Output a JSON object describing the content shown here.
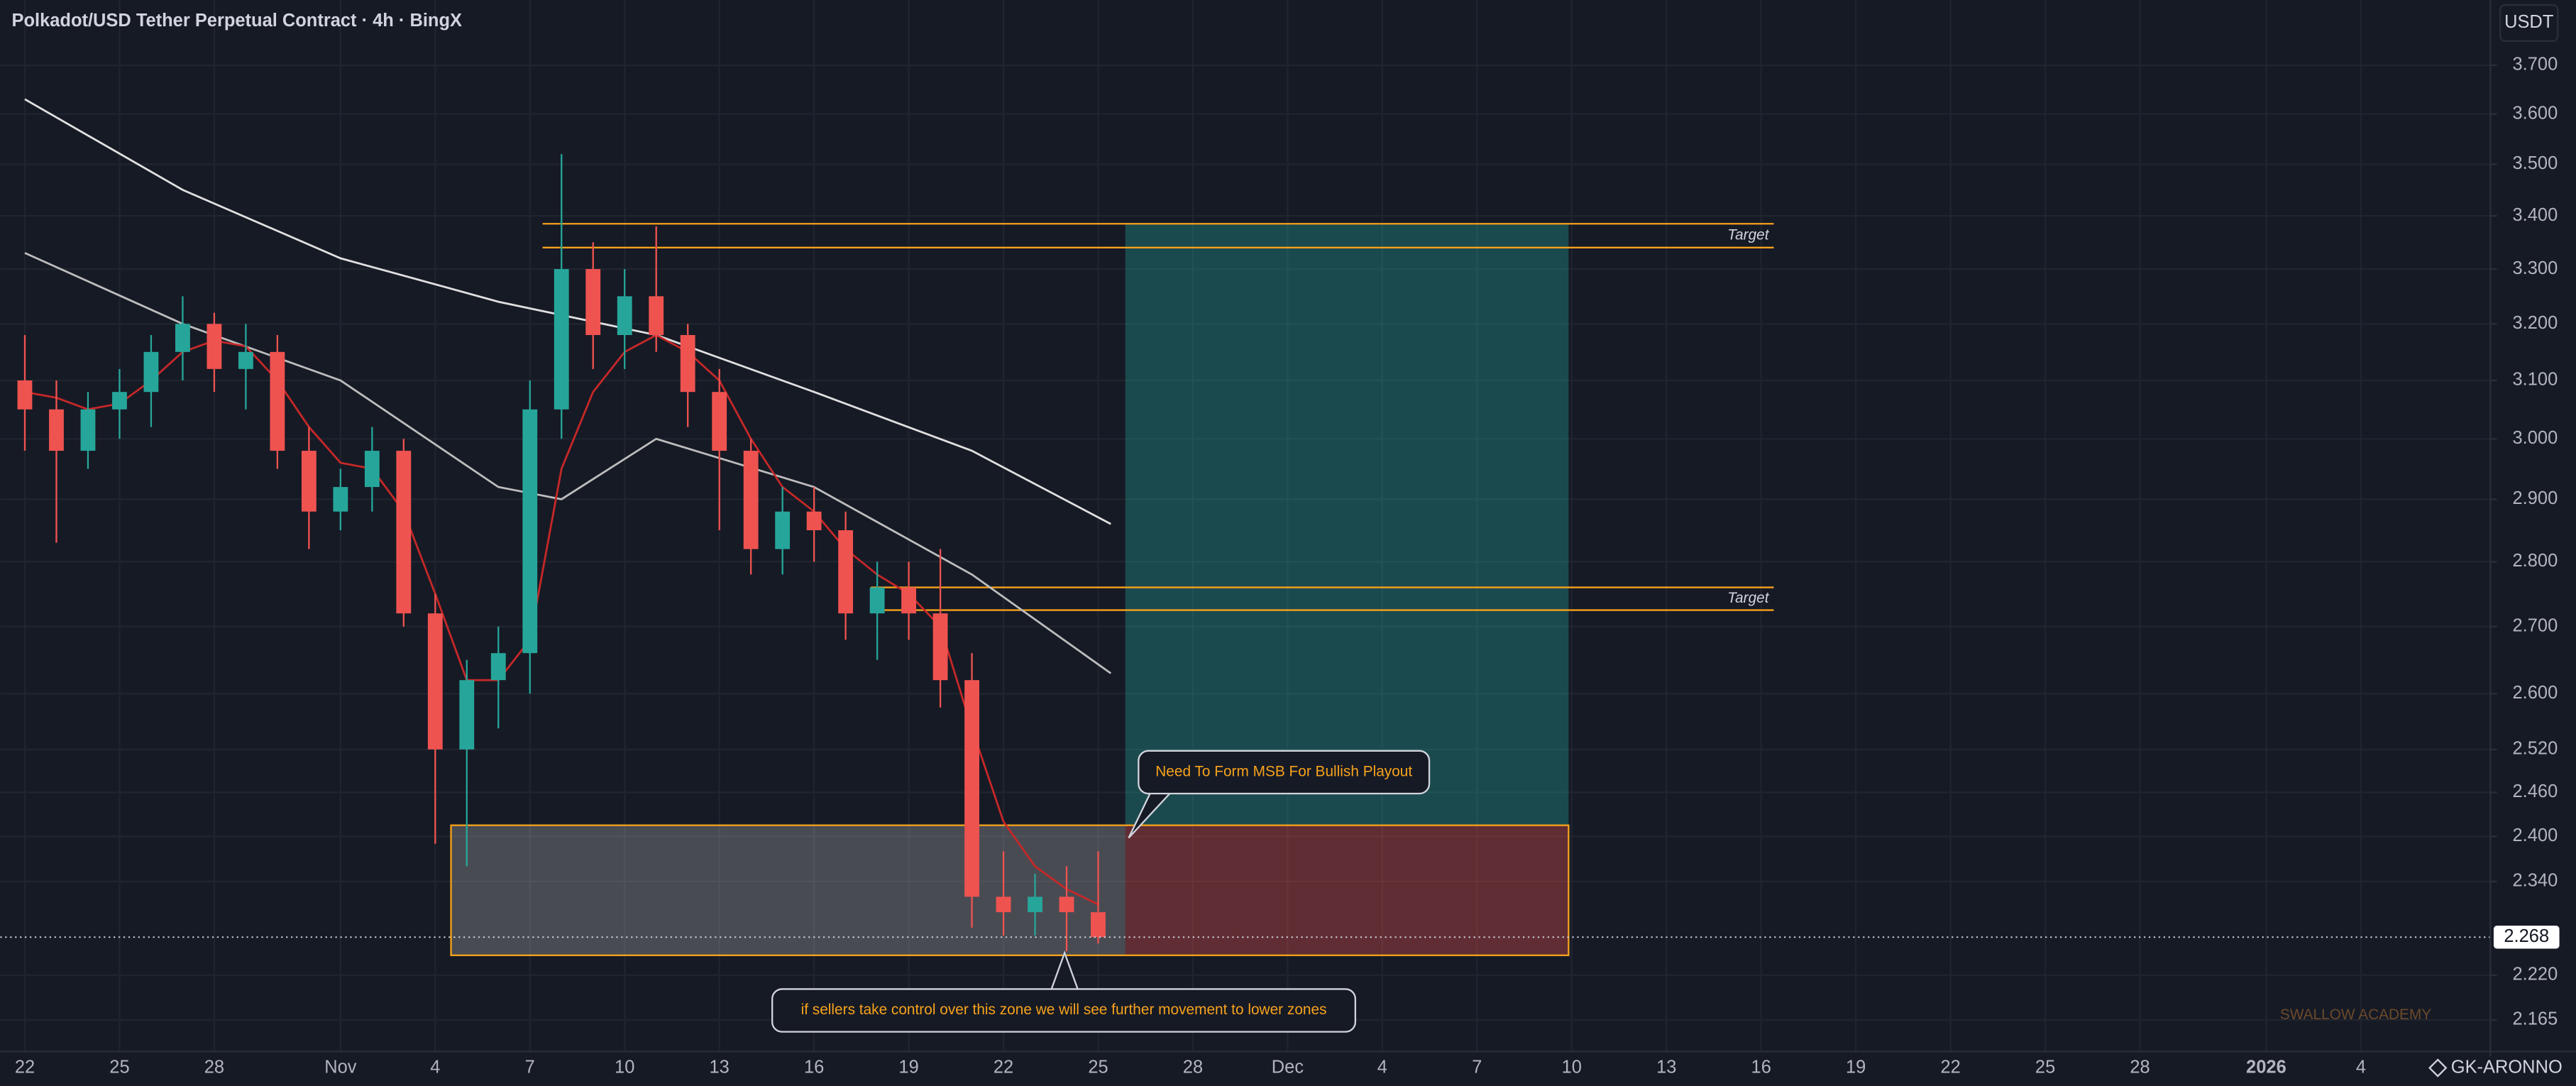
{
  "header": {
    "title": "Polkadot/USD Tether Perpetual Contract · 4h · BingX",
    "currency": "USDT"
  },
  "chart_data": {
    "type": "candlestick",
    "log": true,
    "grid": true,
    "xlim": [
      -0.78,
      78.1
    ],
    "xticks": [
      {
        "value": 0,
        "label": "22"
      },
      {
        "value": 3,
        "label": "25"
      },
      {
        "value": 6,
        "label": "28"
      },
      {
        "value": 10,
        "label": "Nov"
      },
      {
        "value": 13,
        "label": "4"
      },
      {
        "value": 16,
        "label": "7"
      },
      {
        "value": 19,
        "label": "10"
      },
      {
        "value": 22,
        "label": "13"
      },
      {
        "value": 25,
        "label": "16"
      },
      {
        "value": 28,
        "label": "19"
      },
      {
        "value": 31,
        "label": "22"
      },
      {
        "value": 34,
        "label": "25"
      },
      {
        "value": 37,
        "label": "28"
      },
      {
        "value": 40,
        "label": "Dec"
      },
      {
        "value": 43,
        "label": "4"
      },
      {
        "value": 46,
        "label": "7"
      },
      {
        "value": 49,
        "label": "10"
      },
      {
        "value": 52,
        "label": "13"
      },
      {
        "value": 55,
        "label": "16"
      },
      {
        "value": 58,
        "label": "19"
      },
      {
        "value": 61,
        "label": "22"
      },
      {
        "value": 64,
        "label": "25"
      },
      {
        "value": 67,
        "label": "28"
      },
      {
        "value": 71,
        "label": "2026"
      },
      {
        "value": 74,
        "label": "4"
      }
    ],
    "ylim": [
      2.127,
      3.838
    ],
    "yticks": [
      {
        "value": 3.7,
        "label": "3.700"
      },
      {
        "value": 3.6,
        "label": "3.600"
      },
      {
        "value": 3.5,
        "label": "3.500"
      },
      {
        "value": 3.4,
        "label": "3.400"
      },
      {
        "value": 3.3,
        "label": "3.300"
      },
      {
        "value": 3.2,
        "label": "3.200"
      },
      {
        "value": 3.1,
        "label": "3.100"
      },
      {
        "value": 3.0,
        "label": "3.000"
      },
      {
        "value": 2.9,
        "label": "2.900"
      },
      {
        "value": 2.8,
        "label": "2.800"
      },
      {
        "value": 2.7,
        "label": "2.700"
      },
      {
        "value": 2.6,
        "label": "2.600"
      },
      {
        "value": 2.52,
        "label": "2.520"
      },
      {
        "value": 2.46,
        "label": "2.460"
      },
      {
        "value": 2.4,
        "label": "2.400"
      },
      {
        "value": 2.34,
        "label": "2.340"
      },
      {
        "value": 2.22,
        "label": "2.220"
      },
      {
        "value": 2.165,
        "label": "2.165"
      }
    ],
    "up_color": "#26a69a",
    "down_color": "#ef5350",
    "candles": {
      "x": [
        0,
        1,
        2,
        3,
        4,
        5,
        6,
        7,
        8,
        9,
        10,
        11,
        12,
        13,
        14,
        15,
        16,
        17,
        18,
        19,
        20,
        21,
        22,
        23,
        24,
        25,
        26,
        27,
        28,
        29,
        30,
        31,
        32,
        33,
        34
      ],
      "open": [
        3.1,
        3.05,
        2.98,
        3.05,
        3.08,
        3.15,
        3.2,
        3.12,
        3.15,
        2.98,
        2.88,
        2.92,
        2.98,
        2.72,
        2.52,
        2.62,
        2.66,
        3.05,
        3.3,
        3.18,
        3.25,
        3.18,
        3.08,
        2.98,
        2.82,
        2.88,
        2.85,
        2.72,
        2.76,
        2.72,
        2.62,
        2.32,
        2.3,
        2.32,
        2.3
      ],
      "high": [
        3.18,
        3.1,
        3.08,
        3.12,
        3.18,
        3.25,
        3.22,
        3.2,
        3.18,
        3.02,
        2.95,
        3.02,
        3.0,
        2.75,
        2.65,
        2.7,
        3.1,
        3.52,
        3.35,
        3.3,
        3.38,
        3.2,
        3.12,
        3.0,
        2.92,
        2.92,
        2.88,
        2.8,
        2.8,
        2.82,
        2.66,
        2.38,
        2.35,
        2.36,
        2.38
      ],
      "low": [
        2.98,
        2.83,
        2.95,
        3.0,
        3.02,
        3.1,
        3.08,
        3.05,
        2.95,
        2.82,
        2.85,
        2.88,
        2.7,
        2.39,
        2.36,
        2.55,
        2.6,
        3.0,
        3.12,
        3.12,
        3.15,
        3.02,
        2.85,
        2.78,
        2.78,
        2.8,
        2.68,
        2.65,
        2.68,
        2.58,
        2.28,
        2.27,
        2.27,
        2.25,
        2.26
      ],
      "close": [
        3.05,
        2.98,
        3.05,
        3.08,
        3.15,
        3.2,
        3.12,
        3.15,
        2.98,
        2.88,
        2.92,
        2.98,
        2.72,
        2.52,
        2.62,
        2.66,
        3.05,
        3.3,
        3.18,
        3.25,
        3.18,
        3.08,
        2.98,
        2.82,
        2.88,
        2.85,
        2.72,
        2.76,
        2.72,
        2.62,
        2.32,
        2.3,
        2.32,
        2.3,
        2.268
      ]
    },
    "moving_averages": [
      {
        "color": "#e0e0e0",
        "x": [
          0,
          5,
          10,
          15,
          20,
          25,
          30,
          34.4
        ],
        "values": [
          3.63,
          3.45,
          3.32,
          3.24,
          3.18,
          3.08,
          2.98,
          2.86
        ]
      },
      {
        "color": "#bdbdbd",
        "x": [
          0,
          5,
          10,
          15,
          17,
          20,
          25,
          30,
          34.4
        ],
        "values": [
          3.33,
          3.2,
          3.1,
          2.92,
          2.9,
          3.0,
          2.92,
          2.78,
          2.63
        ]
      },
      {
        "color": "#c62828",
        "x": [
          0,
          1,
          2,
          3,
          4,
          5,
          6,
          7,
          8,
          9,
          10,
          11,
          12,
          13,
          14,
          15,
          16,
          17,
          18,
          19,
          20,
          21,
          22,
          23,
          24,
          25,
          26,
          27,
          28,
          29,
          30,
          31,
          32,
          33,
          34
        ],
        "values": [
          3.08,
          3.07,
          3.05,
          3.06,
          3.1,
          3.15,
          3.17,
          3.16,
          3.1,
          3.02,
          2.96,
          2.95,
          2.88,
          2.75,
          2.62,
          2.62,
          2.68,
          2.95,
          3.08,
          3.15,
          3.18,
          3.15,
          3.1,
          3.0,
          2.92,
          2.88,
          2.82,
          2.78,
          2.75,
          2.7,
          2.55,
          2.42,
          2.36,
          2.33,
          2.31
        ]
      }
    ],
    "zones": [
      {
        "x": [
          34.86,
          48.9
        ],
        "y": [
          2.415,
          3.385
        ],
        "fill": "rgba(38,166,154,0.35)"
      },
      {
        "x": [
          34.86,
          48.9
        ],
        "y": [
          2.245,
          2.415
        ],
        "fill": "rgba(239,83,80,0.35)"
      },
      {
        "x": [
          13.5,
          34.86
        ],
        "y": [
          2.245,
          2.415
        ],
        "fill": "rgba(170,170,170,0.35)"
      },
      {
        "x": [
          13.5,
          48.9
        ],
        "y": [
          2.245,
          2.415
        ],
        "stroke": "#f7a21b"
      }
    ],
    "levels": [
      {
        "label": "Target",
        "x": [
          16.4,
          55.4
        ],
        "y": [
          3.385,
          3.34
        ],
        "color": "#f7a21b"
      },
      {
        "label": "Target",
        "x": [
          26.8,
          55.4
        ],
        "y": [
          2.76,
          2.725
        ],
        "color": "#f7a21b"
      }
    ],
    "last_price": 2.268
  },
  "annotations": [
    "Need To Form MSB For Bullish Playout",
    "if sellers take control over this zone we will see further movement to lower zones"
  ],
  "watermark": "SWALLOW ACADEMY",
  "footer": "GK-ARONNO"
}
